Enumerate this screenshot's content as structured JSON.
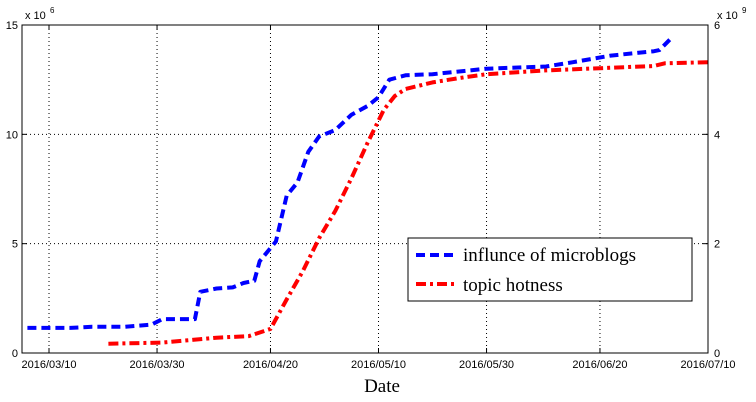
{
  "chart_data": {
    "type": "line",
    "xlabel": "Date",
    "x_ticks": [
      "2016/03/10",
      "2016/03/30",
      "2016/04/20",
      "2016/05/10",
      "2016/05/30",
      "2016/06/20",
      "2016/07/10"
    ],
    "xlim": [
      "2016/03/05",
      "2016/07/10"
    ],
    "y_left": {
      "ylim": [
        0,
        15
      ],
      "ticks": [
        "0",
        "5",
        "10",
        "15"
      ],
      "multiplier": "x 10",
      "exponent": "6"
    },
    "y_right": {
      "ylim": [
        0,
        6
      ],
      "ticks": [
        "0",
        "2",
        "4",
        "6"
      ],
      "multiplier": "x 10",
      "exponent": "9"
    },
    "grid": true,
    "legend_position": "center-right",
    "series": [
      {
        "name": "influnce of microblogs",
        "axis": "left",
        "color": "#0000ff",
        "style": "dashed",
        "points": [
          [
            "2016/03/06",
            1.15
          ],
          [
            "2016/03/10",
            1.15
          ],
          [
            "2016/03/14",
            1.15
          ],
          [
            "2016/03/18",
            1.2
          ],
          [
            "2016/03/24",
            1.2
          ],
          [
            "2016/03/29",
            1.3
          ],
          [
            "2016/03/31",
            1.55
          ],
          [
            "2016/04/06",
            1.55
          ],
          [
            "2016/04/07",
            2.8
          ],
          [
            "2016/04/10",
            2.95
          ],
          [
            "2016/04/13",
            3.0
          ],
          [
            "2016/04/15",
            3.2
          ],
          [
            "2016/04/17",
            3.3
          ],
          [
            "2016/04/18",
            4.2
          ],
          [
            "2016/04/21",
            5.1
          ],
          [
            "2016/04/23",
            7.2
          ],
          [
            "2016/04/25",
            7.8
          ],
          [
            "2016/04/27",
            9.2
          ],
          [
            "2016/04/29",
            9.9
          ],
          [
            "2016/05/02",
            10.2
          ],
          [
            "2016/05/05",
            10.9
          ],
          [
            "2016/05/08",
            11.3
          ],
          [
            "2016/05/10",
            11.7
          ],
          [
            "2016/05/12",
            12.5
          ],
          [
            "2016/05/15",
            12.7
          ],
          [
            "2016/05/20",
            12.75
          ],
          [
            "2016/05/30",
            13.0
          ],
          [
            "2016/06/10",
            13.1
          ],
          [
            "2016/06/15",
            13.3
          ],
          [
            "2016/06/22",
            13.6
          ],
          [
            "2016/06/30",
            13.8
          ],
          [
            "2016/07/01",
            13.85
          ],
          [
            "2016/07/02",
            14.1
          ],
          [
            "2016/07/03",
            14.35
          ]
        ]
      },
      {
        "name": "topic hotness",
        "axis": "right",
        "color": "#ff0000",
        "style": "dashdot",
        "points": [
          [
            "2016/03/21",
            0.17
          ],
          [
            "2016/03/31",
            0.19
          ],
          [
            "2016/04/10",
            0.28
          ],
          [
            "2016/04/16",
            0.31
          ],
          [
            "2016/04/20",
            0.44
          ],
          [
            "2016/04/23",
            0.98
          ],
          [
            "2016/04/26",
            1.5
          ],
          [
            "2016/04/29",
            2.1
          ],
          [
            "2016/05/02",
            2.6
          ],
          [
            "2016/05/05",
            3.2
          ],
          [
            "2016/05/08",
            3.85
          ],
          [
            "2016/05/11",
            4.45
          ],
          [
            "2016/05/13",
            4.7
          ],
          [
            "2016/05/15",
            4.83
          ],
          [
            "2016/05/20",
            4.95
          ],
          [
            "2016/05/25",
            5.03
          ],
          [
            "2016/05/30",
            5.1
          ],
          [
            "2016/06/10",
            5.17
          ],
          [
            "2016/06/20",
            5.21
          ],
          [
            "2016/06/30",
            5.25
          ],
          [
            "2016/07/02",
            5.3
          ],
          [
            "2016/07/10",
            5.32
          ]
        ]
      }
    ]
  }
}
